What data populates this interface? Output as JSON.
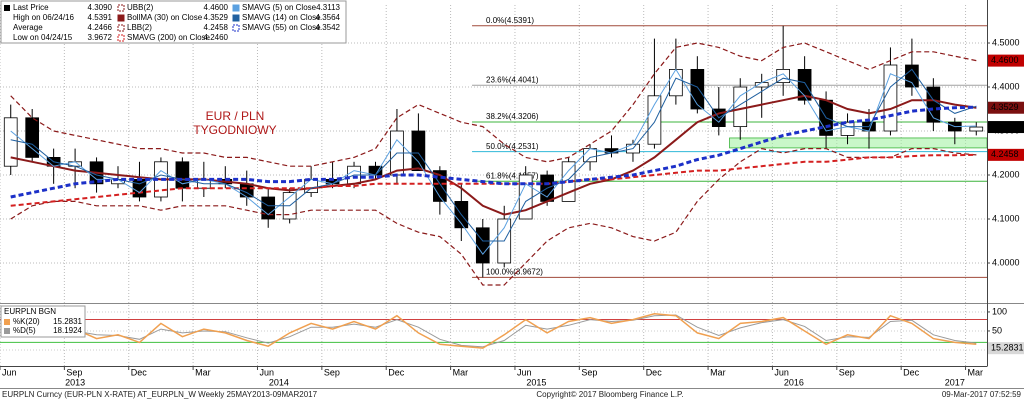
{
  "chart_data": [
    {
      "type": "candlestick",
      "x": [
        "2013-06",
        "2013-07",
        "2013-08",
        "2013-09",
        "2013-10",
        "2013-11",
        "2013-12",
        "2014-01",
        "2014-02",
        "2014-03",
        "2014-04",
        "2014-05",
        "2014-06",
        "2014-07",
        "2014-08",
        "2014-09",
        "2014-10",
        "2014-11",
        "2014-12",
        "2015-01",
        "2015-02",
        "2015-03",
        "2015-04",
        "2015-05",
        "2015-06",
        "2015-07",
        "2015-08",
        "2015-09",
        "2015-10",
        "2015-11",
        "2015-12",
        "2016-01",
        "2016-02",
        "2016-03",
        "2016-04",
        "2016-05",
        "2016-06",
        "2016-07",
        "2016-08",
        "2016-09",
        "2016-10",
        "2016-11",
        "2016-12",
        "2017-01",
        "2017-02",
        "2017-03"
      ],
      "price": {
        "name": "Last Price",
        "color": "#000000",
        "tag_color": "#000000",
        "legend_value": {
          "value": 4.309,
          "label": "4.3090"
        },
        "open": [
          4.22,
          4.33,
          4.24,
          4.22,
          4.23,
          4.18,
          4.19,
          4.15,
          4.23,
          4.17,
          4.19,
          4.18,
          4.15,
          4.1,
          4.16,
          4.19,
          4.18,
          4.22,
          4.2,
          4.3,
          4.21,
          4.14,
          4.08,
          4.0,
          4.1,
          4.2,
          4.14,
          4.23,
          4.26,
          4.25,
          4.27,
          4.38,
          4.44,
          4.35,
          4.31,
          4.4,
          4.41,
          4.44,
          4.37,
          4.29,
          4.32,
          4.3,
          4.45,
          4.4,
          4.32,
          4.3
        ],
        "high": [
          4.36,
          4.35,
          4.26,
          4.26,
          4.24,
          4.22,
          4.23,
          4.24,
          4.24,
          4.23,
          4.22,
          4.21,
          4.17,
          4.17,
          4.22,
          4.23,
          4.23,
          4.23,
          4.35,
          4.34,
          4.22,
          4.18,
          4.1,
          4.13,
          4.22,
          4.21,
          4.24,
          4.27,
          4.29,
          4.28,
          4.51,
          4.51,
          4.47,
          4.4,
          4.42,
          4.43,
          4.5391,
          4.47,
          4.39,
          4.34,
          4.35,
          4.49,
          4.51,
          4.42,
          4.33,
          4.32
        ],
        "low": [
          4.2,
          4.23,
          4.18,
          4.17,
          4.16,
          4.17,
          4.14,
          4.14,
          4.14,
          4.15,
          4.17,
          4.13,
          4.08,
          4.09,
          4.15,
          4.17,
          4.17,
          4.19,
          4.18,
          4.21,
          4.11,
          4.05,
          3.9672,
          3.99,
          4.1,
          4.13,
          4.14,
          4.21,
          4.24,
          4.23,
          4.26,
          4.36,
          4.34,
          4.29,
          4.28,
          4.33,
          4.38,
          4.36,
          4.26,
          4.27,
          4.26,
          4.29,
          4.38,
          4.3,
          4.27,
          4.29
        ],
        "close": [
          4.33,
          4.24,
          4.22,
          4.23,
          4.18,
          4.19,
          4.15,
          4.23,
          4.17,
          4.19,
          4.18,
          4.15,
          4.1,
          4.16,
          4.19,
          4.18,
          4.22,
          4.2,
          4.3,
          4.21,
          4.14,
          4.08,
          4.0,
          4.1,
          4.2,
          4.14,
          4.23,
          4.26,
          4.25,
          4.27,
          4.38,
          4.44,
          4.35,
          4.31,
          4.4,
          4.41,
          4.44,
          4.37,
          4.29,
          4.32,
          4.3,
          4.45,
          4.4,
          4.32,
          4.3,
          4.309
        ]
      },
      "stats": [
        {
          "name": "High on 06/24/16",
          "value": 4.5391,
          "label": "4.5391"
        },
        {
          "name": "Average",
          "value": 4.2466,
          "label": "4.2466"
        },
        {
          "name": "Low on 04/24/15",
          "value": 3.9672,
          "label": "3.9672"
        }
      ],
      "series": [
        {
          "name": "UBB(2)",
          "color": "#8b1a1a",
          "dash": true,
          "width": 1.2,
          "tag_color": "#c00000",
          "legend_value": {
            "value": 4.46,
            "label": "4.4600"
          },
          "values": [
            4.38,
            4.33,
            4.3,
            4.29,
            4.28,
            4.27,
            4.26,
            4.26,
            4.25,
            4.25,
            4.24,
            4.24,
            4.23,
            4.22,
            4.22,
            4.23,
            4.24,
            4.26,
            4.33,
            4.36,
            4.34,
            4.32,
            4.31,
            4.27,
            4.24,
            4.23,
            4.24,
            4.27,
            4.3,
            4.36,
            4.43,
            4.49,
            4.5,
            4.49,
            4.47,
            4.46,
            4.49,
            4.5,
            4.48,
            4.46,
            4.44,
            4.46,
            4.48,
            4.48,
            4.47,
            4.46
          ]
        },
        {
          "name": "BollMA (30) on Close",
          "color": "#8b1a1a",
          "dash": false,
          "width": 2,
          "tag_color": "#7a1010",
          "legend_value": {
            "value": 4.3529,
            "label": "4.3529"
          },
          "values": [
            4.24,
            4.23,
            4.22,
            4.21,
            4.205,
            4.2,
            4.195,
            4.19,
            4.19,
            4.19,
            4.185,
            4.18,
            4.17,
            4.165,
            4.17,
            4.175,
            4.18,
            4.19,
            4.21,
            4.215,
            4.2,
            4.17,
            4.13,
            4.11,
            4.12,
            4.14,
            4.16,
            4.18,
            4.19,
            4.21,
            4.24,
            4.28,
            4.32,
            4.34,
            4.35,
            4.36,
            4.37,
            4.38,
            4.37,
            4.35,
            4.34,
            4.35,
            4.37,
            4.37,
            4.36,
            4.3529
          ]
        },
        {
          "name": "LBB(2)",
          "color": "#8b1a1a",
          "dash": true,
          "width": 1.2,
          "tag_color": "#c00000",
          "legend_value": {
            "value": 4.2458,
            "label": "4.2458"
          },
          "values": [
            4.1,
            4.13,
            4.14,
            4.14,
            4.13,
            4.13,
            4.13,
            4.12,
            4.13,
            4.13,
            4.13,
            4.12,
            4.11,
            4.11,
            4.12,
            4.12,
            4.12,
            4.12,
            4.09,
            4.07,
            4.06,
            4.02,
            3.95,
            3.95,
            4.0,
            4.05,
            4.08,
            4.09,
            4.08,
            4.06,
            4.05,
            4.07,
            4.14,
            4.19,
            4.23,
            4.26,
            4.25,
            4.26,
            4.26,
            4.24,
            4.24,
            4.24,
            4.26,
            4.26,
            4.25,
            4.2458
          ]
        },
        {
          "name": "SMAVG (200) on Close",
          "color": "#d42020",
          "dash": true,
          "width": 2,
          "legend_value": {
            "value": 4.246,
            "label": "4.2460"
          },
          "values": [
            4.13,
            4.135,
            4.14,
            4.145,
            4.15,
            4.155,
            4.16,
            4.165,
            4.17,
            4.17,
            4.17,
            4.17,
            4.17,
            4.17,
            4.17,
            4.175,
            4.175,
            4.18,
            4.18,
            4.18,
            4.18,
            4.18,
            4.18,
            4.18,
            4.18,
            4.18,
            4.185,
            4.19,
            4.19,
            4.195,
            4.2,
            4.205,
            4.21,
            4.21,
            4.215,
            4.22,
            4.225,
            4.23,
            4.23,
            4.235,
            4.24,
            4.24,
            4.243,
            4.245,
            4.245,
            4.246
          ]
        },
        {
          "name": "SMAVG (5) on Close",
          "color": "#5aa0e0",
          "dash": false,
          "width": 1,
          "legend_value": {
            "value": 4.3113,
            "label": "4.3113"
          },
          "values": [
            4.3,
            4.26,
            4.22,
            4.23,
            4.19,
            4.19,
            4.16,
            4.21,
            4.18,
            4.19,
            4.18,
            4.15,
            4.11,
            4.15,
            4.19,
            4.18,
            4.21,
            4.2,
            4.28,
            4.23,
            4.15,
            4.09,
            4.02,
            4.08,
            4.18,
            4.15,
            4.21,
            4.26,
            4.25,
            4.27,
            4.36,
            4.44,
            4.36,
            4.32,
            4.38,
            4.41,
            4.43,
            4.38,
            4.3,
            4.31,
            4.3,
            4.43,
            4.41,
            4.33,
            4.31,
            4.3113
          ]
        },
        {
          "name": "SMAVG (14) on Close",
          "color": "#2060a0",
          "dash": false,
          "width": 1,
          "legend_value": {
            "value": 4.3564,
            "label": "4.3564"
          },
          "values": [
            4.28,
            4.27,
            4.23,
            4.22,
            4.2,
            4.19,
            4.18,
            4.2,
            4.19,
            4.18,
            4.18,
            4.16,
            4.13,
            4.13,
            4.17,
            4.18,
            4.2,
            4.2,
            4.25,
            4.25,
            4.18,
            4.11,
            4.05,
            4.05,
            4.14,
            4.17,
            4.19,
            4.24,
            4.25,
            4.26,
            4.32,
            4.42,
            4.4,
            4.33,
            4.36,
            4.39,
            4.42,
            4.41,
            4.33,
            4.31,
            4.31,
            4.4,
            4.44,
            4.37,
            4.34,
            4.3564
          ]
        },
        {
          "name": "SMAVG (55) on Close",
          "color": "#1c30c8",
          "dash": true,
          "width": 3,
          "legend_value": {
            "value": 4.3542,
            "label": "4.3542"
          },
          "values": [
            4.15,
            4.16,
            4.17,
            4.18,
            4.185,
            4.19,
            4.19,
            4.19,
            4.19,
            4.19,
            4.19,
            4.19,
            4.185,
            4.185,
            4.19,
            4.19,
            4.195,
            4.195,
            4.2,
            4.2,
            4.195,
            4.19,
            4.185,
            4.18,
            4.18,
            4.18,
            4.185,
            4.19,
            4.195,
            4.2,
            4.21,
            4.22,
            4.235,
            4.245,
            4.26,
            4.275,
            4.29,
            4.3,
            4.31,
            4.32,
            4.325,
            4.335,
            4.345,
            4.35,
            4.353,
            4.3542
          ]
        }
      ],
      "fib_start": "2015-04",
      "fib_levels": [
        {
          "label": "0.0%(4.5391)",
          "value": 4.5391,
          "color": "#a04a3a"
        },
        {
          "label": "23.6%(4.4041)",
          "value": 4.4041,
          "color": "#a0a0a0"
        },
        {
          "label": "38.2%(4.3206)",
          "value": 4.3206,
          "color": "#3cb43c"
        },
        {
          "label": "50.0%(4.2531)",
          "value": 4.2531,
          "color": "#30b8d8"
        },
        {
          "label": "61.8%(4.1857)",
          "value": 4.1857,
          "color": "#3cb43c"
        },
        {
          "label": "100.0%(3.9672)",
          "value": 3.9672,
          "color": "#a04a3a"
        }
      ],
      "zones": [
        {
          "x": "2016-04",
          "y": [
            4.2616,
            4.2842
          ],
          "color": "#9cf09c"
        }
      ],
      "annotations": [
        "EUR / PLN",
        "TYGODNIOWY"
      ],
      "xlim": [
        "2013-06",
        "2017-04"
      ],
      "xticks": [
        {
          "value": "2013-06",
          "label": "Jun"
        },
        {
          "value": "2013-09",
          "label": "Sep"
        },
        {
          "value": "2013-12",
          "label": "Dec"
        },
        {
          "value": "2014-03",
          "label": "Mar"
        },
        {
          "value": "2014-06",
          "label": "Jun"
        },
        {
          "value": "2014-09",
          "label": "Sep"
        },
        {
          "value": "2014-12",
          "label": "Dec"
        },
        {
          "value": "2015-03",
          "label": "Mar"
        },
        {
          "value": "2015-06",
          "label": "Jun"
        },
        {
          "value": "2015-09",
          "label": "Sep"
        },
        {
          "value": "2015-12",
          "label": "Dec"
        },
        {
          "value": "2016-03",
          "label": "Mar"
        },
        {
          "value": "2016-06",
          "label": "Jun"
        },
        {
          "value": "2016-09",
          "label": "Sep"
        },
        {
          "value": "2016-12",
          "label": "Dec"
        },
        {
          "value": "2017-03",
          "label": "Mar"
        }
      ],
      "years": [
        2013,
        2014,
        2015,
        2016,
        2017
      ],
      "ylim": [
        3.9159,
        4.5864
      ],
      "yticks": [
        {
          "value": 4.0,
          "label": "4.0000"
        },
        {
          "value": 4.1,
          "label": "4.1000"
        },
        {
          "value": 4.2,
          "label": "4.2000"
        },
        {
          "value": 4.3,
          "label": "4.3000"
        },
        {
          "value": 4.4,
          "label": "4.4000"
        },
        {
          "value": 4.5,
          "label": "4.5000"
        }
      ],
      "grid": true
    },
    {
      "type": "line",
      "title": "EURPLN BGN",
      "x": [
        "2013-06",
        "2013-07",
        "2013-08",
        "2013-09",
        "2013-10",
        "2013-11",
        "2013-12",
        "2014-01",
        "2014-02",
        "2014-03",
        "2014-04",
        "2014-05",
        "2014-06",
        "2014-07",
        "2014-08",
        "2014-09",
        "2014-10",
        "2014-11",
        "2014-12",
        "2015-01",
        "2015-02",
        "2015-03",
        "2015-04",
        "2015-05",
        "2015-06",
        "2015-07",
        "2015-08",
        "2015-09",
        "2015-10",
        "2015-11",
        "2015-12",
        "2016-01",
        "2016-02",
        "2016-03",
        "2016-04",
        "2016-05",
        "2016-06",
        "2016-07",
        "2016-08",
        "2016-09",
        "2016-10",
        "2016-11",
        "2016-12",
        "2017-01",
        "2017-02",
        "2017-03"
      ],
      "series": [
        {
          "name": "%K(20)",
          "color": "#f0a050",
          "width": 1.5,
          "tag_color": "#d8d8d8",
          "values": [
            85,
            60,
            40,
            55,
            30,
            40,
            20,
            70,
            35,
            55,
            45,
            25,
            10,
            45,
            70,
            55,
            75,
            55,
            90,
            45,
            15,
            10,
            5,
            40,
            80,
            45,
            75,
            85,
            70,
            80,
            95,
            90,
            45,
            30,
            70,
            75,
            85,
            50,
            15,
            40,
            30,
            90,
            70,
            30,
            20,
            15.2831
          ]
        },
        {
          "name": "%D(5)",
          "color": "#9a9a9a",
          "width": 1,
          "values": [
            80,
            70,
            48,
            50,
            40,
            38,
            28,
            55,
            45,
            50,
            48,
            32,
            18,
            35,
            60,
            60,
            68,
            60,
            80,
            60,
            28,
            12,
            8,
            25,
            65,
            55,
            65,
            80,
            75,
            78,
            90,
            92,
            60,
            38,
            58,
            72,
            80,
            62,
            25,
            35,
            33,
            75,
            78,
            40,
            25,
            18.1924
          ]
        }
      ],
      "levels": [
        {
          "value": 80,
          "color": "#d04040"
        },
        {
          "value": 20,
          "color": "#40c040"
        }
      ],
      "xlim": [
        "2013-06",
        "2017-04"
      ],
      "ylim": [
        -39.5,
        113
      ],
      "yticks": [
        0,
        50,
        100
      ],
      "grid": true
    }
  ],
  "footer": {
    "left": "EURPLN Curncy (EUR-PLN X-RATE) AT_EURPLN_W  Weekly 25MAY2013-09MAR2017",
    "center": "Copyright© 2017 Bloomberg Finance L.P.",
    "right": "09-Mar-2017 07:52:59"
  }
}
